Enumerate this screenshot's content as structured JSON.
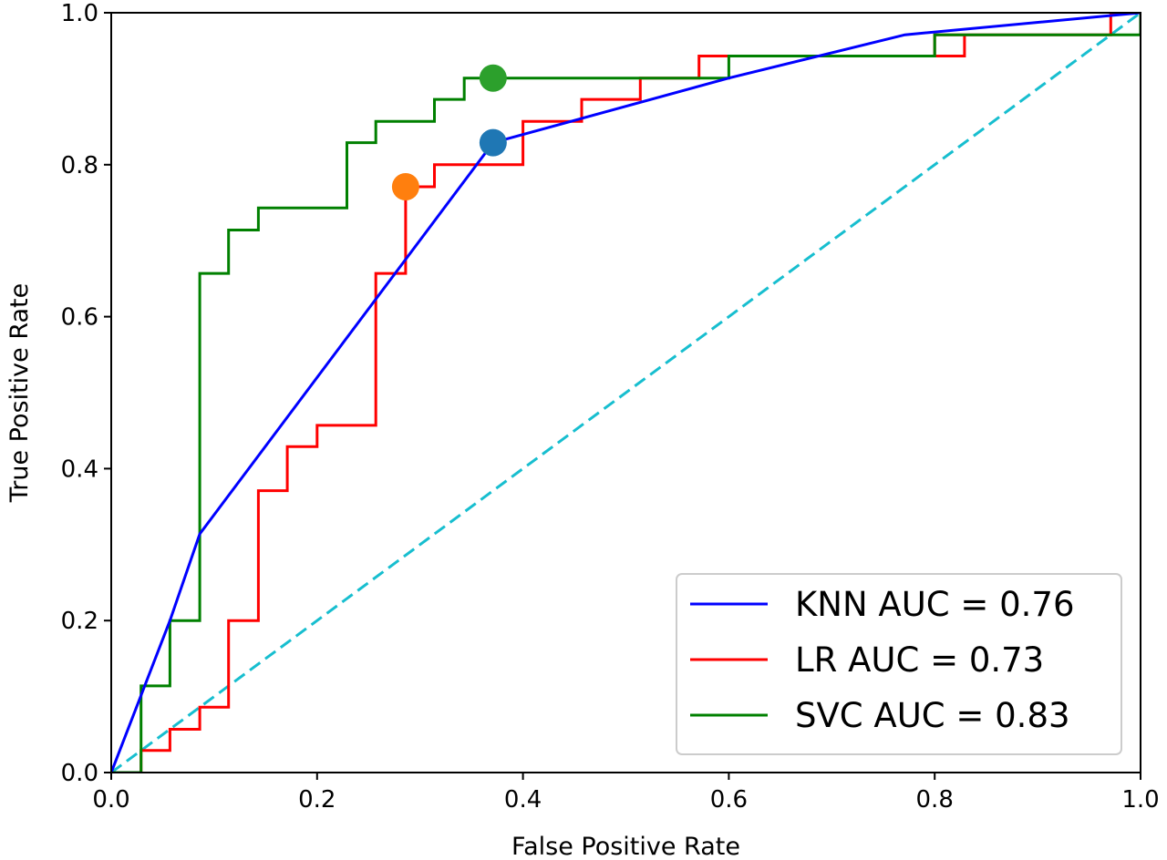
{
  "chart_data": {
    "type": "line",
    "title": "",
    "xlabel": "False Positive Rate",
    "ylabel": "True Positive Rate",
    "xlim": [
      0.0,
      1.0
    ],
    "ylim": [
      0.0,
      1.0
    ],
    "x_ticks": [
      "0.0",
      "0.2",
      "0.4",
      "0.6",
      "0.8",
      "1.0"
    ],
    "y_ticks": [
      "0.0",
      "0.2",
      "0.4",
      "0.6",
      "0.8",
      "1.0"
    ],
    "grid": false,
    "legend_position": "bottom-right",
    "series": [
      {
        "name": "KNN AUC = 0.76",
        "color": "#0000ff",
        "style": "solid",
        "points": [
          [
            0.0,
            0.0
          ],
          [
            0.057,
            0.2
          ],
          [
            0.086,
            0.314
          ],
          [
            0.371,
            0.829
          ],
          [
            0.6,
            0.914
          ],
          [
            0.771,
            0.971
          ],
          [
            1.0,
            1.0
          ]
        ]
      },
      {
        "name": "LR AUC = 0.73",
        "color": "#ff0000",
        "style": "solid",
        "points": [
          [
            0.0,
            0.0
          ],
          [
            0.029,
            0.0
          ],
          [
            0.029,
            0.029
          ],
          [
            0.057,
            0.029
          ],
          [
            0.057,
            0.057
          ],
          [
            0.086,
            0.057
          ],
          [
            0.086,
            0.086
          ],
          [
            0.114,
            0.086
          ],
          [
            0.114,
            0.2
          ],
          [
            0.143,
            0.2
          ],
          [
            0.143,
            0.371
          ],
          [
            0.171,
            0.371
          ],
          [
            0.171,
            0.429
          ],
          [
            0.2,
            0.429
          ],
          [
            0.2,
            0.457
          ],
          [
            0.257,
            0.457
          ],
          [
            0.257,
            0.657
          ],
          [
            0.286,
            0.657
          ],
          [
            0.286,
            0.771
          ],
          [
            0.314,
            0.771
          ],
          [
            0.314,
            0.8
          ],
          [
            0.4,
            0.8
          ],
          [
            0.4,
            0.857
          ],
          [
            0.457,
            0.857
          ],
          [
            0.457,
            0.886
          ],
          [
            0.514,
            0.886
          ],
          [
            0.514,
            0.914
          ],
          [
            0.571,
            0.914
          ],
          [
            0.571,
            0.943
          ],
          [
            0.8,
            0.943
          ],
          [
            0.8,
            0.971
          ],
          [
            0.829,
            0.971
          ],
          [
            0.829,
            0.943
          ],
          [
            0.8,
            0.943
          ],
          [
            0.8,
            0.971
          ],
          [
            0.971,
            0.971
          ],
          [
            0.971,
            1.0
          ],
          [
            1.0,
            1.0
          ]
        ]
      },
      {
        "name": "SVC AUC = 0.83",
        "color": "#008000",
        "style": "solid",
        "points": [
          [
            0.0,
            0.0
          ],
          [
            0.029,
            0.0
          ],
          [
            0.029,
            0.114
          ],
          [
            0.057,
            0.114
          ],
          [
            0.057,
            0.2
          ],
          [
            0.086,
            0.2
          ],
          [
            0.086,
            0.657
          ],
          [
            0.114,
            0.657
          ],
          [
            0.114,
            0.714
          ],
          [
            0.143,
            0.714
          ],
          [
            0.143,
            0.743
          ],
          [
            0.229,
            0.743
          ],
          [
            0.229,
            0.829
          ],
          [
            0.257,
            0.829
          ],
          [
            0.257,
            0.857
          ],
          [
            0.314,
            0.857
          ],
          [
            0.314,
            0.886
          ],
          [
            0.343,
            0.886
          ],
          [
            0.343,
            0.914
          ],
          [
            0.6,
            0.914
          ],
          [
            0.6,
            0.943
          ],
          [
            0.8,
            0.943
          ],
          [
            0.8,
            0.971
          ],
          [
            1.0,
            0.971
          ],
          [
            1.0,
            1.0
          ]
        ]
      },
      {
        "name": "",
        "color": "#17becf",
        "style": "dashed",
        "points": [
          [
            0.0,
            0.0
          ],
          [
            1.0,
            1.0
          ]
        ]
      }
    ],
    "markers": [
      {
        "x": 0.371,
        "y": 0.829,
        "color": "#1f77b4"
      },
      {
        "x": 0.286,
        "y": 0.771,
        "color": "#ff7f0e"
      },
      {
        "x": 0.371,
        "y": 0.914,
        "color": "#2ca02c"
      }
    ]
  }
}
